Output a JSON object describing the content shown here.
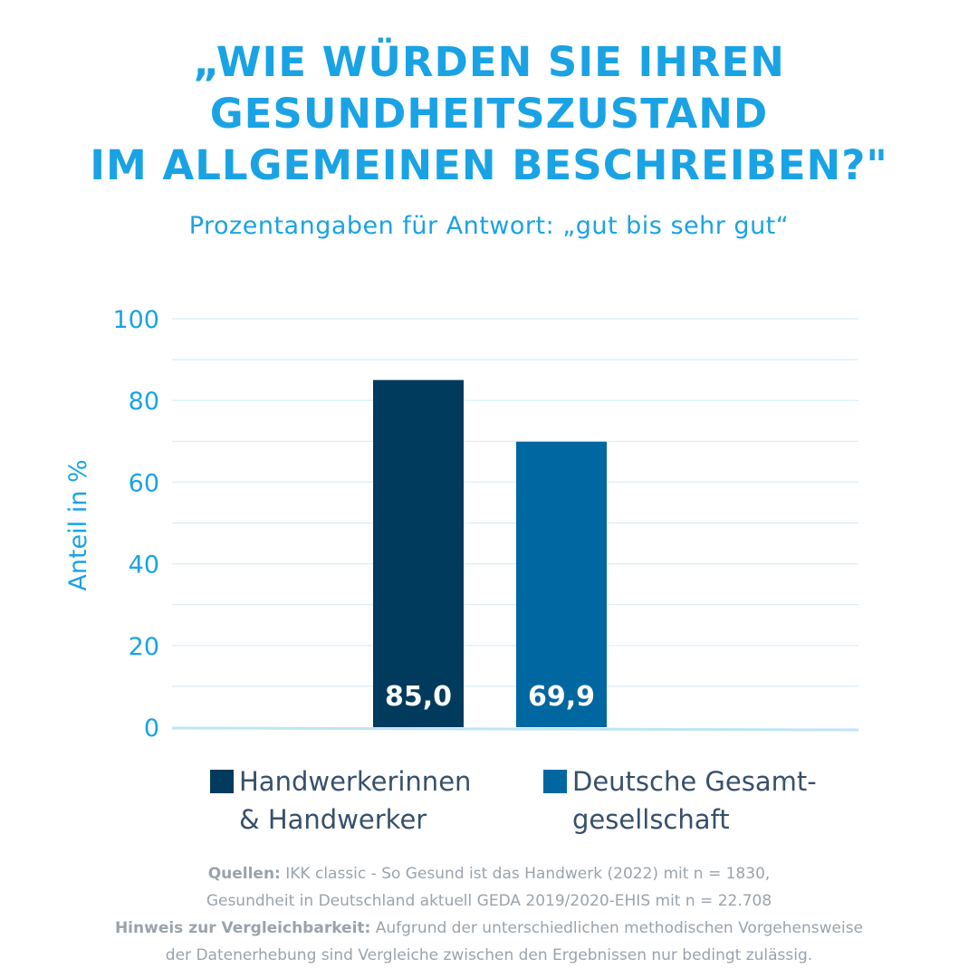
{
  "title_lines": [
    "„Wie würden Sie Ihren",
    "Gesundheitszustand",
    "im Allgemeinen beschreiben?\""
  ],
  "subtitle": "Prozentangaben für Antwort: „gut bis sehr gut“",
  "colors": {
    "accent": "#1aa3e4",
    "series1": "#003a5d",
    "series2": "#0067a0",
    "gridline": "#d9eef8",
    "baseline": "#bfe5f4",
    "text": "#37506a",
    "notes": "#9aa3ab"
  },
  "chart_data": {
    "type": "bar",
    "title": "„Wie würden Sie Ihren Gesundheitszustand im Allgemeinen beschreiben?\"",
    "subtitle": "Prozentangaben für Antwort: „gut bis sehr gut“",
    "ylabel": "Anteil in %",
    "xlabel": "",
    "ylim": [
      0,
      100
    ],
    "yticks": [
      0,
      20,
      40,
      60,
      80,
      100
    ],
    "grid": true,
    "categories": [
      "Handwerkerinnen & Handwerker",
      "Deutsche Gesamtgesellschaft"
    ],
    "values": [
      85.0,
      69.9
    ],
    "value_labels": [
      "85,0",
      "69,9"
    ],
    "legend_position": "bottom"
  },
  "legend": [
    {
      "lines": [
        "Handwerkerinnen",
        "& Handwerker"
      ]
    },
    {
      "lines": [
        "Deutsche Gesamt-",
        "gesellschaft"
      ]
    }
  ],
  "notes": {
    "sources_label": "Quellen:",
    "sources_line1": "IKK classic - So Gesund ist das Handwerk (2022) mit n = 1830,",
    "sources_line2": "Gesundheit in Deutschland aktuell GEDA 2019/2020-EHIS mit n = 22.708",
    "hint_label": "Hinweis zur Vergleichbarkeit:",
    "hint_line1": "Aufgrund der unterschiedlichen methodischen Vorgehensweise",
    "hint_line2": "der Datenerhebung sind Vergleiche zwischen den Ergebnissen nur bedingt zulässig."
  }
}
